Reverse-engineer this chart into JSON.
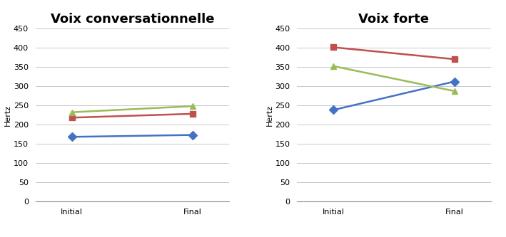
{
  "left_title": "Voix conversationnelle",
  "right_title": "Voix forte",
  "ylabel": "Hertz",
  "x_labels": [
    "Initial",
    "Final"
  ],
  "ylim": [
    0,
    450
  ],
  "yticks": [
    0,
    50,
    100,
    150,
    200,
    250,
    300,
    350,
    400,
    450
  ],
  "left_series": [
    {
      "color": "#4472C4",
      "marker": "D",
      "initial": 168,
      "final": 173
    },
    {
      "color": "#C0504D",
      "marker": "s",
      "initial": 218,
      "final": 228
    },
    {
      "color": "#9BBB59",
      "marker": "^",
      "initial": 232,
      "final": 248
    }
  ],
  "right_series": [
    {
      "color": "#4472C4",
      "marker": "D",
      "initial": 238,
      "final": 312
    },
    {
      "color": "#C0504D",
      "marker": "s",
      "initial": 401,
      "final": 370
    },
    {
      "color": "#9BBB59",
      "marker": "^",
      "initial": 352,
      "final": 287
    }
  ],
  "title_fontsize": 13,
  "axis_label_fontsize": 8,
  "tick_fontsize": 8,
  "line_width": 1.8,
  "marker_size": 6,
  "grid_color": "#C8C8C8",
  "grid_lw": 0.7
}
